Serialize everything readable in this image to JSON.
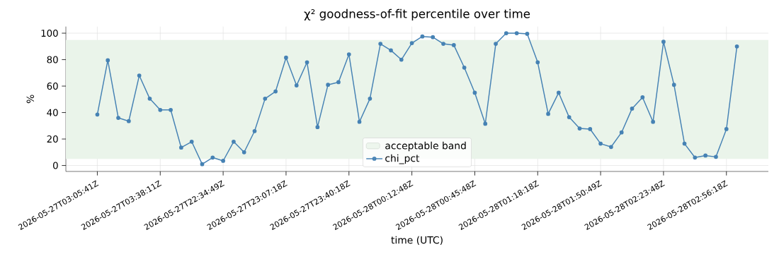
{
  "chart_data": {
    "type": "line",
    "title": "χ² goodness-of-fit percentile over time",
    "xlabel": "time (UTC)",
    "ylabel": "%",
    "categories": [
      "2026-05-27T03:05:41Z",
      null,
      null,
      null,
      null,
      null,
      "2026-05-27T03:38:11Z",
      null,
      null,
      null,
      null,
      null,
      "2026-05-27T22:34:49Z",
      null,
      null,
      null,
      null,
      null,
      "2026-05-27T23:07:18Z",
      null,
      null,
      null,
      null,
      null,
      "2026-05-27T23:40:18Z",
      null,
      null,
      null,
      null,
      null,
      "2026-05-28T00:12:48Z",
      null,
      null,
      null,
      null,
      null,
      "2026-05-28T00:45:48Z",
      null,
      null,
      null,
      null,
      null,
      "2026-05-28T01:18:18Z",
      null,
      null,
      null,
      null,
      null,
      "2026-05-28T01:50:49Z",
      null,
      null,
      null,
      null,
      null,
      "2026-05-28T02:23:48Z",
      null,
      null,
      null,
      null,
      null,
      "2026-05-28T02:56:18Z",
      null
    ],
    "series": [
      {
        "name": "chi_pct",
        "color": "#4682b4",
        "values": [
          38.5,
          79.5,
          36,
          33.5,
          68,
          50.5,
          42,
          42,
          13.5,
          18,
          1,
          6,
          3.5,
          18,
          10,
          26,
          50.5,
          56,
          81.5,
          60.5,
          78,
          29,
          61,
          63,
          84,
          33,
          50.5,
          92,
          87,
          80,
          92.5,
          97.5,
          97,
          92,
          91,
          74,
          55,
          31.5,
          92,
          100,
          100,
          99.5,
          78,
          39,
          55,
          36.5,
          28,
          27.5,
          16.5,
          14,
          25,
          43,
          51.5,
          33,
          93.5,
          61,
          16.5,
          6,
          7.5,
          6.5,
          27.5,
          90
        ]
      }
    ],
    "bands": [
      {
        "axis": "y",
        "from": 5,
        "to": 95,
        "label": "acceptable band",
        "color": "#eaf4ea"
      }
    ],
    "ylim": [
      -4.5,
      105
    ],
    "yticks": [
      0,
      20,
      40,
      60,
      80,
      100
    ],
    "grid": true,
    "legend": "bottom",
    "marker": "circle",
    "line_style": "solid"
  }
}
